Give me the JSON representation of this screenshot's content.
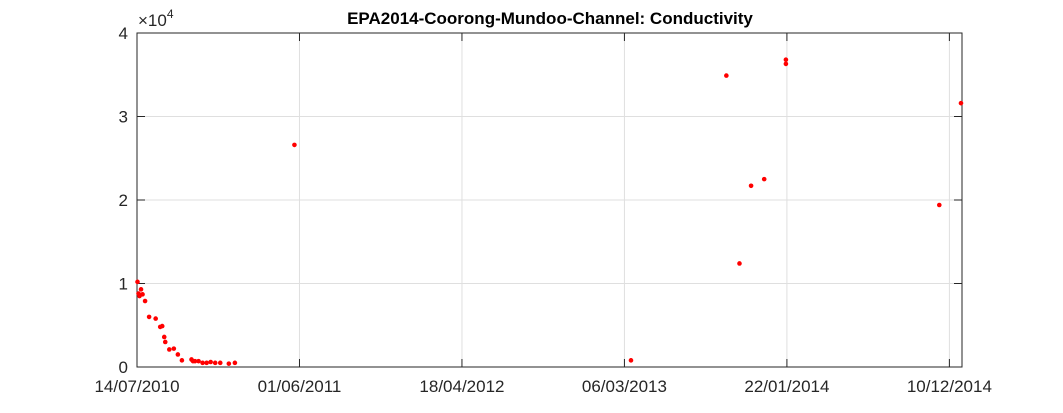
{
  "chart_data": {
    "type": "scatter",
    "title": "EPA2014-Coorong-Mundoo-Channel: Conductivity",
    "xlabel": "",
    "ylabel": "",
    "y_exponent": {
      "base": "×10",
      "power": "4"
    },
    "xlim": [
      "2010-07-14",
      "2015-01-04"
    ],
    "ylim": [
      0,
      4
    ],
    "xticks": [
      "14/07/2010",
      "01/06/2011",
      "18/04/2012",
      "06/03/2013",
      "22/01/2014",
      "10/12/2014"
    ],
    "xtick_dates": [
      "2010-07-14",
      "2011-06-01",
      "2012-04-18",
      "2013-03-06",
      "2014-01-22",
      "2014-12-10"
    ],
    "yticks": [
      "0",
      "1",
      "2",
      "3",
      "4"
    ],
    "ytick_values": [
      0,
      1,
      2,
      3,
      4
    ],
    "grid": true,
    "marker_color": "#ff0000",
    "series": [
      {
        "name": "Conductivity",
        "points": [
          {
            "x": "2010-07-15",
            "y": 1.02
          },
          {
            "x": "2010-07-17",
            "y": 0.88
          },
          {
            "x": "2010-07-19",
            "y": 0.85
          },
          {
            "x": "2010-07-22",
            "y": 0.93
          },
          {
            "x": "2010-07-25",
            "y": 0.87
          },
          {
            "x": "2010-07-30",
            "y": 0.79
          },
          {
            "x": "2010-08-07",
            "y": 0.6
          },
          {
            "x": "2010-08-20",
            "y": 0.58
          },
          {
            "x": "2010-08-29",
            "y": 0.48
          },
          {
            "x": "2010-09-02",
            "y": 0.49
          },
          {
            "x": "2010-09-06",
            "y": 0.36
          },
          {
            "x": "2010-09-08",
            "y": 0.3
          },
          {
            "x": "2010-09-16",
            "y": 0.21
          },
          {
            "x": "2010-09-25",
            "y": 0.22
          },
          {
            "x": "2010-10-03",
            "y": 0.15
          },
          {
            "x": "2010-10-11",
            "y": 0.08
          },
          {
            "x": "2010-10-30",
            "y": 0.09
          },
          {
            "x": "2010-11-02",
            "y": 0.07
          },
          {
            "x": "2010-11-06",
            "y": 0.07
          },
          {
            "x": "2010-11-13",
            "y": 0.07
          },
          {
            "x": "2010-11-21",
            "y": 0.05
          },
          {
            "x": "2010-11-29",
            "y": 0.05
          },
          {
            "x": "2010-12-07",
            "y": 0.06
          },
          {
            "x": "2010-12-16",
            "y": 0.05
          },
          {
            "x": "2010-12-26",
            "y": 0.05
          },
          {
            "x": "2011-01-12",
            "y": 0.04
          },
          {
            "x": "2011-01-24",
            "y": 0.05
          },
          {
            "x": "2011-05-22",
            "y": 2.66
          },
          {
            "x": "2013-03-19",
            "y": 0.08
          },
          {
            "x": "2013-09-24",
            "y": 3.49
          },
          {
            "x": "2013-10-20",
            "y": 1.24
          },
          {
            "x": "2013-11-12",
            "y": 2.17
          },
          {
            "x": "2013-12-08",
            "y": 2.25
          },
          {
            "x": "2014-01-20",
            "y": 3.68
          },
          {
            "x": "2014-01-20",
            "y": 3.63
          },
          {
            "x": "2014-11-20",
            "y": 1.94
          },
          {
            "x": "2015-01-02",
            "y": 3.16
          }
        ]
      }
    ]
  }
}
